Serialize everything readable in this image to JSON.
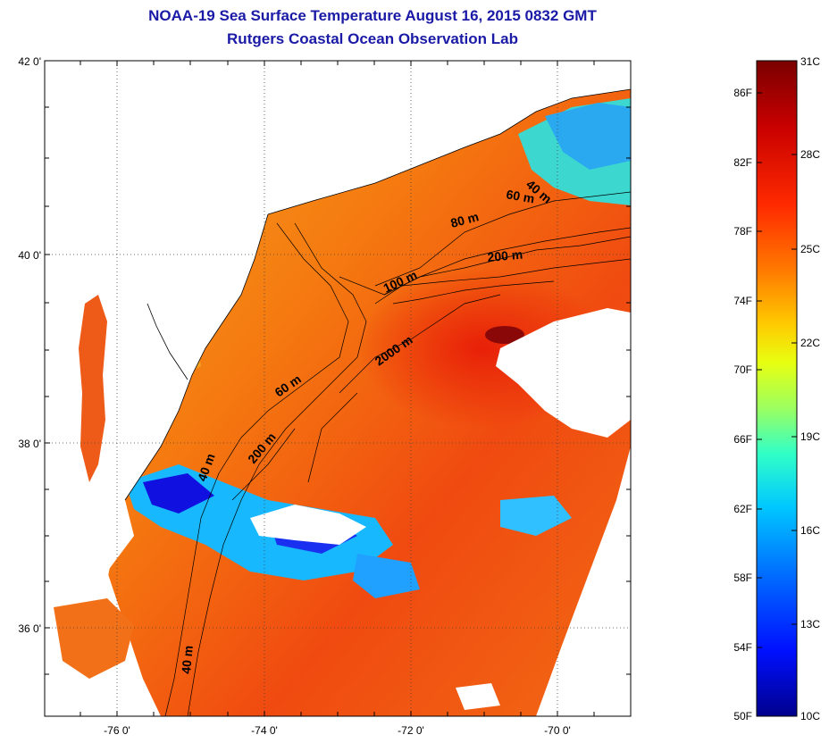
{
  "title": "NOAA-19 Sea Surface Temperature August 16, 2015 0832 GMT",
  "subtitle": "Rutgers Coastal Ocean Observation Lab",
  "map": {
    "lat_labels": [
      "42 0'",
      "40 0'",
      "38 0'",
      "36 0'"
    ],
    "lon_labels": [
      "-76 0'",
      "-74 0'",
      "-72 0'",
      "-70 0'"
    ],
    "contour_labels": [
      "40 m",
      "60 m",
      "80 m",
      "200 m",
      "100 m",
      "2000 m",
      "60 m",
      "200 m",
      "40 m",
      "40 m"
    ]
  },
  "colorbar": {
    "fahrenheit_labels": [
      "86F",
      "82F",
      "78F",
      "74F",
      "70F",
      "66F",
      "62F",
      "58F",
      "54F",
      "50F"
    ],
    "celsius_labels": [
      "31C",
      "28C",
      "25C",
      "22C",
      "19C",
      "16C",
      "13C",
      "10C"
    ],
    "colors": [
      "#7a0000",
      "#c80000",
      "#ff2a00",
      "#ff7a00",
      "#ffc800",
      "#e8ff10",
      "#9cff60",
      "#30ffc8",
      "#00c8ff",
      "#0070ff",
      "#0010ff",
      "#00008c"
    ]
  }
}
